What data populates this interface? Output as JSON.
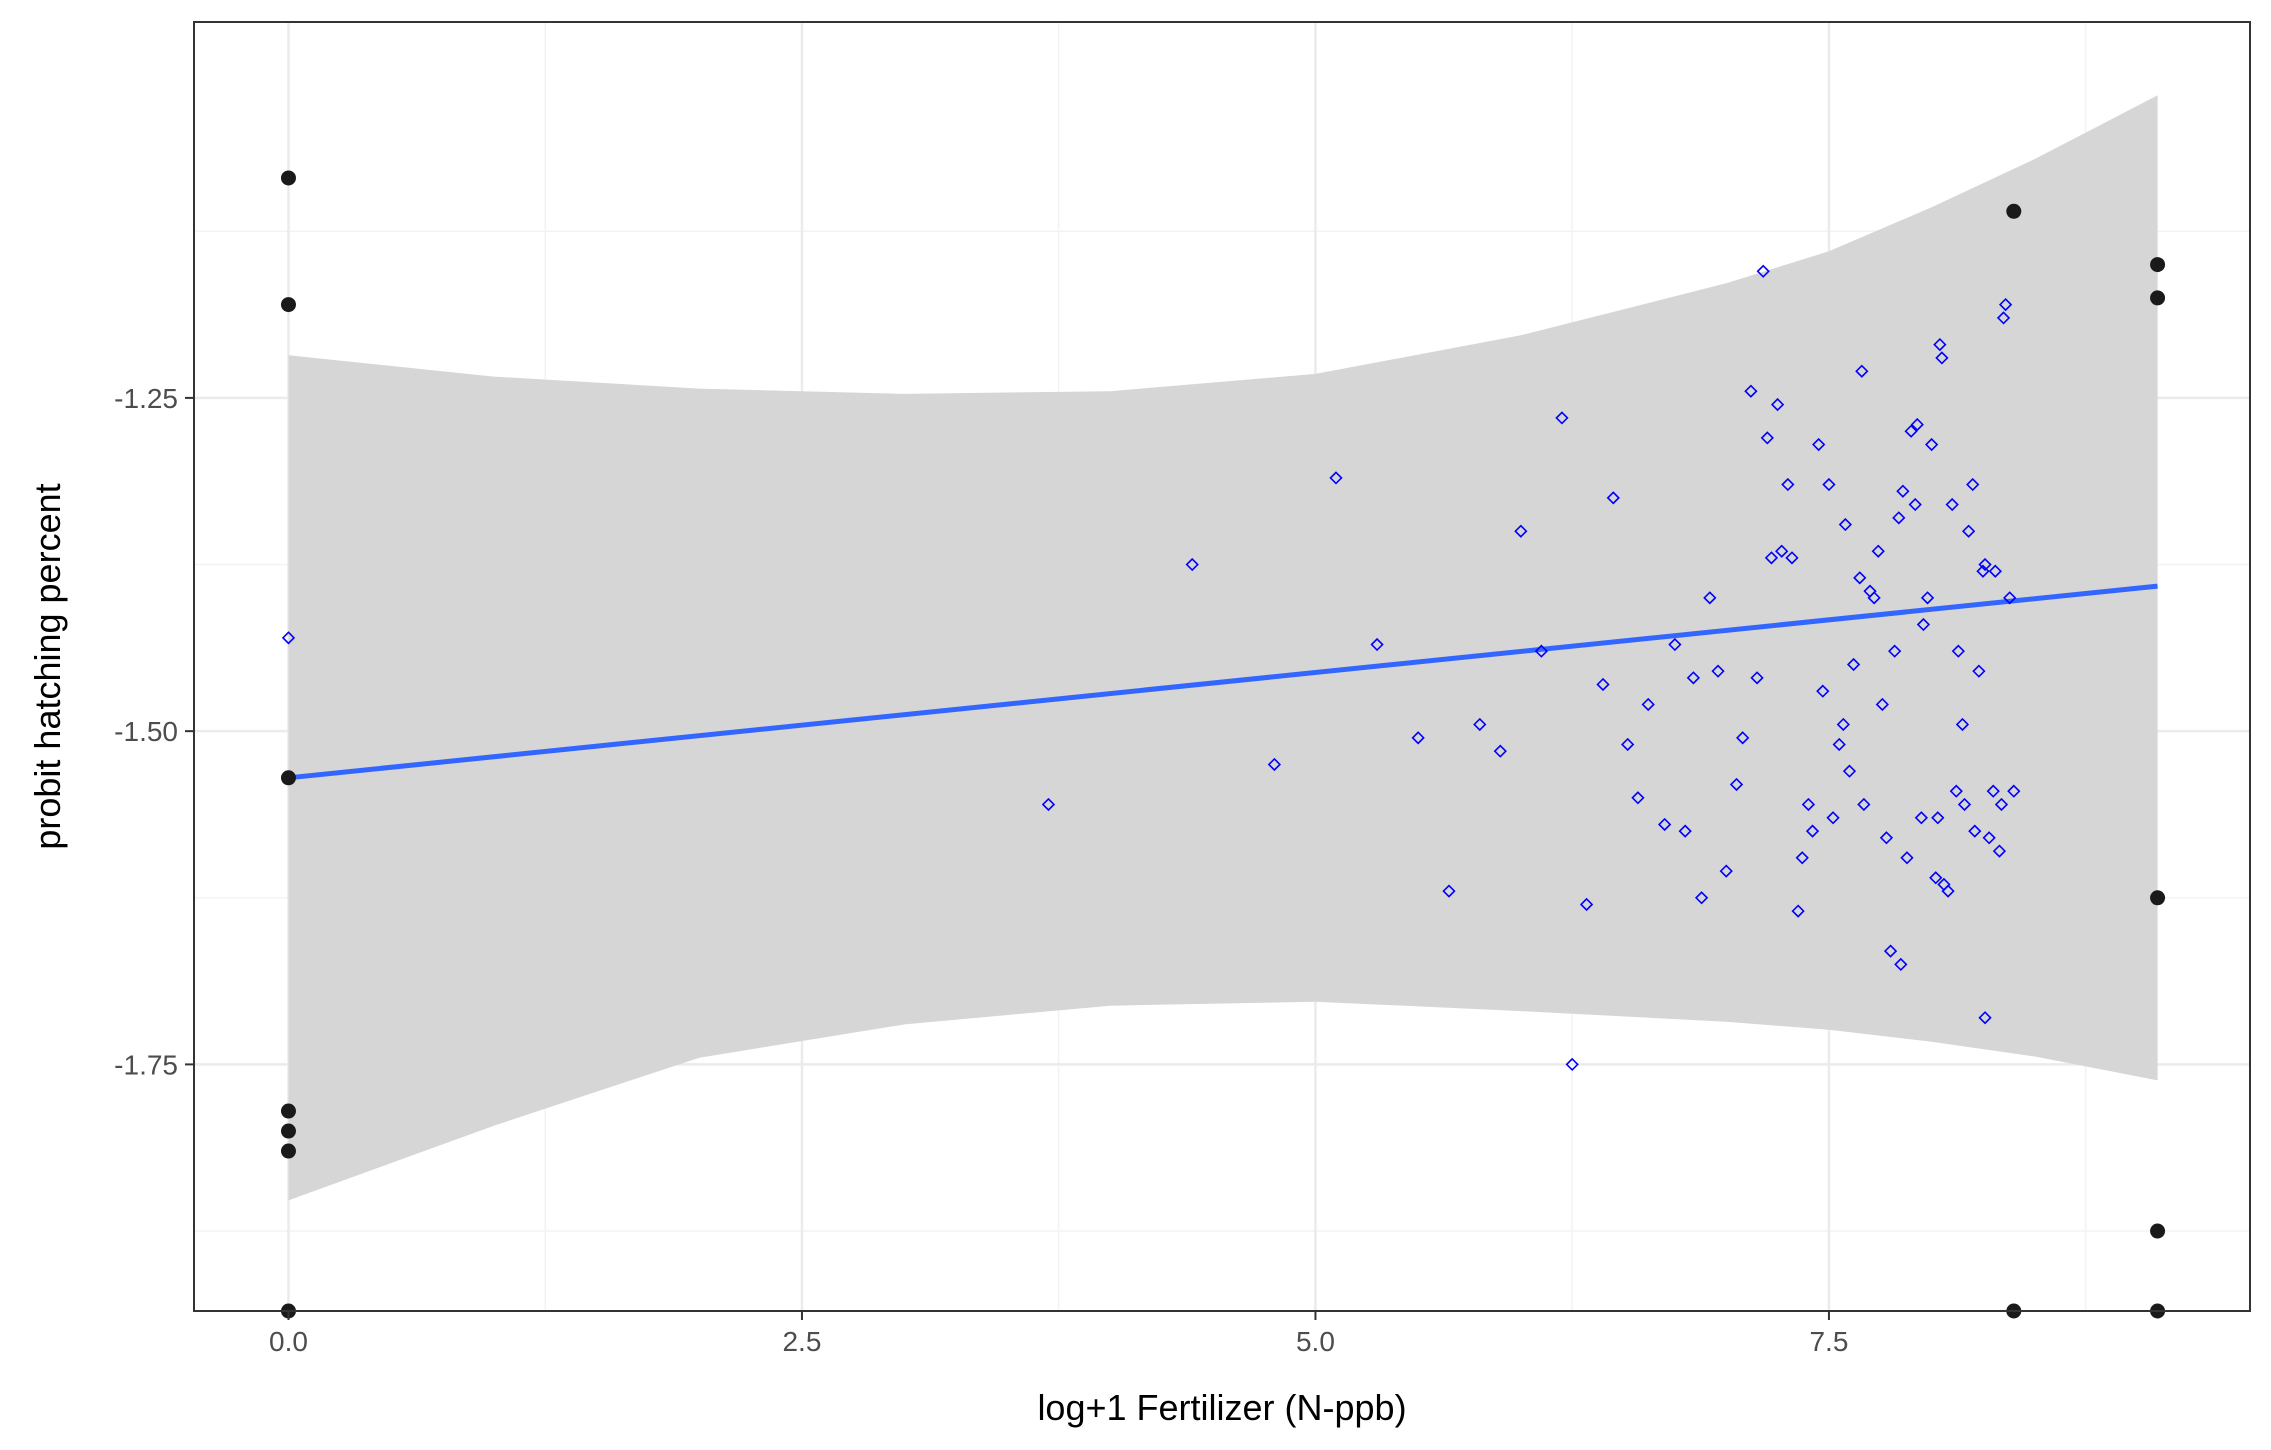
{
  "chart_data": {
    "type": "scatter",
    "title": "",
    "xlabel": "log+1 Fertilizer (N-ppb)",
    "ylabel": "probit hatching percent",
    "xlim": [
      -0.46,
      9.55
    ],
    "ylim": [
      -1.935,
      -0.968
    ],
    "x_ticks": [
      0,
      2.5,
      5,
      7.5
    ],
    "x_tick_labels": [
      "0.0",
      "2.5",
      "5.0",
      "7.5"
    ],
    "y_ticks": [
      -1.75,
      -1.5,
      -1.25
    ],
    "y_tick_labels": [
      "-1.75",
      "-1.50",
      "-1.25"
    ],
    "grid": true,
    "legend": "none",
    "colors": {
      "panel_border": "#333333",
      "grid_major": "#ebebeb",
      "grid_minor": "#f3f3f3",
      "ribbon": "#d6d6d6",
      "fit_line": "#3366ff",
      "diamonds": "#0000ff",
      "points": "#1a1a1a"
    },
    "series": [
      {
        "kind": "points",
        "marker": "filled-circle",
        "x": [
          0,
          0,
          0,
          0,
          0,
          0,
          0,
          8.4,
          8.4,
          9.1,
          9.1,
          9.1,
          9.1,
          9.1
        ],
        "y": [
          -1.085,
          -1.18,
          -1.535,
          -1.785,
          -1.8,
          -1.815,
          -1.935,
          -1.11,
          -1.935,
          -1.15,
          -1.175,
          -1.625,
          -1.875,
          -1.935
        ]
      },
      {
        "kind": "points",
        "marker": "open-diamond",
        "x": [
          0,
          3.7,
          4.4,
          4.8,
          5.1,
          5.3,
          5.5,
          5.65,
          5.8,
          5.9,
          6.0,
          6.1,
          6.2,
          6.25,
          6.32,
          6.4,
          6.45,
          6.52,
          6.57,
          6.62,
          6.7,
          6.75,
          6.8,
          6.84,
          6.88,
          6.92,
          6.96,
          7.0,
          7.05,
          7.08,
          7.12,
          7.15,
          7.18,
          7.2,
          7.22,
          7.25,
          7.27,
          7.3,
          7.32,
          7.35,
          7.37,
          7.4,
          7.42,
          7.45,
          7.47,
          7.5,
          7.52,
          7.55,
          7.57,
          7.58,
          7.6,
          7.62,
          7.65,
          7.66,
          7.67,
          7.7,
          7.72,
          7.74,
          7.76,
          7.78,
          7.8,
          7.82,
          7.84,
          7.85,
          7.86,
          7.88,
          7.9,
          7.92,
          7.93,
          7.95,
          7.96,
          7.98,
          8.0,
          8.02,
          8.03,
          8.04,
          8.05,
          8.06,
          8.08,
          8.1,
          8.12,
          8.13,
          8.15,
          8.16,
          8.18,
          8.2,
          8.21,
          8.23,
          8.25,
          8.26,
          8.28,
          8.3,
          8.31,
          8.33,
          8.34,
          8.35,
          8.36,
          8.38,
          8.4,
          8.26
        ],
        "y": [
          -1.43,
          -1.555,
          -1.375,
          -1.525,
          -1.31,
          -1.435,
          -1.505,
          -1.62,
          -1.495,
          -1.515,
          -1.35,
          -1.44,
          -1.265,
          -1.75,
          -1.63,
          -1.465,
          -1.325,
          -1.51,
          -1.55,
          -1.48,
          -1.57,
          -1.435,
          -1.575,
          -1.46,
          -1.625,
          -1.4,
          -1.455,
          -1.605,
          -1.54,
          -1.505,
          -1.245,
          -1.46,
          -1.155,
          -1.28,
          -1.37,
          -1.255,
          -1.365,
          -1.315,
          -1.37,
          -1.635,
          -1.595,
          -1.555,
          -1.575,
          -1.285,
          -1.47,
          -1.315,
          -1.565,
          -1.51,
          -1.495,
          -1.345,
          -1.53,
          -1.45,
          -1.385,
          -1.23,
          -1.555,
          -1.395,
          -1.4,
          -1.365,
          -1.48,
          -1.58,
          -1.665,
          -1.44,
          -1.34,
          -1.675,
          -1.32,
          -1.595,
          -1.275,
          -1.33,
          -1.27,
          -1.565,
          -1.42,
          -1.4,
          -1.285,
          -1.61,
          -1.565,
          -1.21,
          -1.22,
          -1.615,
          -1.62,
          -1.33,
          -1.545,
          -1.44,
          -1.495,
          -1.555,
          -1.35,
          -1.315,
          -1.575,
          -1.455,
          -1.38,
          -1.375,
          -1.58,
          -1.545,
          -1.38,
          -1.59,
          -1.555,
          -1.19,
          -1.18,
          -1.4,
          -1.545,
          -1.715
        ]
      }
    ],
    "fit": {
      "kind": "linear",
      "x_range": [
        0,
        9.1
      ],
      "intercept": -1.535,
      "slope": 0.0158,
      "band": [
        [
          0,
          -1.218,
          -1.852
        ],
        [
          1,
          -1.234,
          -1.796
        ],
        [
          2,
          -1.243,
          -1.745
        ],
        [
          3,
          -1.247,
          -1.72
        ],
        [
          4,
          -1.245,
          -1.706
        ],
        [
          5,
          -1.232,
          -1.703
        ],
        [
          6,
          -1.203,
          -1.71
        ],
        [
          7,
          -1.164,
          -1.718
        ],
        [
          7.5,
          -1.14,
          -1.724
        ],
        [
          8,
          -1.107,
          -1.733
        ],
        [
          8.5,
          -1.071,
          -1.744
        ],
        [
          9.1,
          -1.023,
          -1.762
        ]
      ]
    }
  }
}
